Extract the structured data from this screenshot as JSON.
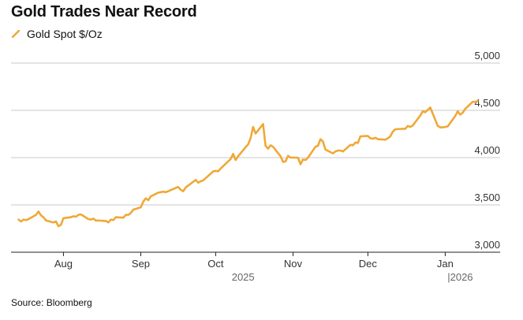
{
  "title": "Gold Trades Near Record",
  "source": "Source: Bloomberg",
  "colors": {
    "line": "#F0A836",
    "grid": "#C9C9C9",
    "text": "#111111",
    "axis_text": "#333333"
  },
  "chart_data": {
    "type": "line",
    "title": "Gold Trades Near Record",
    "xlabel": "",
    "ylabel": "",
    "ylim": [
      3000,
      5000
    ],
    "grid": true,
    "legend_position": "top-left",
    "y_tick_values": [
      3000,
      3500,
      4000,
      4500,
      5000
    ],
    "y_tick_labels": [
      "3,000",
      "3,500",
      "4,000",
      "4,500",
      "5,000"
    ],
    "x_ticks": [
      {
        "date": "2025-08-01",
        "label": "Aug"
      },
      {
        "date": "2025-09-01",
        "label": "Sep"
      },
      {
        "date": "2025-10-01",
        "label": "Oct"
      },
      {
        "date": "2025-11-01",
        "label": "Nov"
      },
      {
        "date": "2025-12-01",
        "label": "Dec"
      },
      {
        "date": "2026-01-01",
        "label": "Jan"
      }
    ],
    "year_labels": [
      {
        "label": "2025",
        "date": "2025-10-12"
      },
      {
        "label": "|2026",
        "date": "2026-01-07"
      }
    ],
    "series": [
      {
        "name": "Gold Spot $/Oz",
        "color": "#F0A836",
        "points": [
          [
            "2025-07-14",
            3345
          ],
          [
            "2025-07-15",
            3325
          ],
          [
            "2025-07-16",
            3345
          ],
          [
            "2025-07-17",
            3340
          ],
          [
            "2025-07-18",
            3350
          ],
          [
            "2025-07-21",
            3395
          ],
          [
            "2025-07-22",
            3430
          ],
          [
            "2025-07-23",
            3390
          ],
          [
            "2025-07-24",
            3370
          ],
          [
            "2025-07-25",
            3335
          ],
          [
            "2025-07-28",
            3315
          ],
          [
            "2025-07-29",
            3325
          ],
          [
            "2025-07-30",
            3275
          ],
          [
            "2025-07-31",
            3290
          ],
          [
            "2025-08-01",
            3360
          ],
          [
            "2025-08-04",
            3370
          ],
          [
            "2025-08-05",
            3380
          ],
          [
            "2025-08-06",
            3375
          ],
          [
            "2025-08-07",
            3395
          ],
          [
            "2025-08-08",
            3400
          ],
          [
            "2025-08-11",
            3350
          ],
          [
            "2025-08-12",
            3345
          ],
          [
            "2025-08-13",
            3355
          ],
          [
            "2025-08-14",
            3335
          ],
          [
            "2025-08-15",
            3335
          ],
          [
            "2025-08-18",
            3330
          ],
          [
            "2025-08-19",
            3315
          ],
          [
            "2025-08-20",
            3345
          ],
          [
            "2025-08-21",
            3340
          ],
          [
            "2025-08-22",
            3370
          ],
          [
            "2025-08-25",
            3365
          ],
          [
            "2025-08-26",
            3395
          ],
          [
            "2025-08-27",
            3395
          ],
          [
            "2025-08-28",
            3415
          ],
          [
            "2025-08-29",
            3450
          ],
          [
            "2025-09-01",
            3475
          ],
          [
            "2025-09-02",
            3535
          ],
          [
            "2025-09-03",
            3570
          ],
          [
            "2025-09-04",
            3550
          ],
          [
            "2025-09-05",
            3590
          ],
          [
            "2025-09-08",
            3630
          ],
          [
            "2025-09-09",
            3635
          ],
          [
            "2025-09-10",
            3640
          ],
          [
            "2025-09-11",
            3635
          ],
          [
            "2025-09-12",
            3645
          ],
          [
            "2025-09-15",
            3680
          ],
          [
            "2025-09-16",
            3690
          ],
          [
            "2025-09-17",
            3660
          ],
          [
            "2025-09-18",
            3645
          ],
          [
            "2025-09-19",
            3685
          ],
          [
            "2025-09-22",
            3745
          ],
          [
            "2025-09-23",
            3765
          ],
          [
            "2025-09-24",
            3735
          ],
          [
            "2025-09-25",
            3750
          ],
          [
            "2025-09-26",
            3760
          ],
          [
            "2025-09-29",
            3830
          ],
          [
            "2025-09-30",
            3855
          ],
          [
            "2025-10-01",
            3860
          ],
          [
            "2025-10-02",
            3855
          ],
          [
            "2025-10-03",
            3885
          ],
          [
            "2025-10-06",
            3960
          ],
          [
            "2025-10-07",
            3985
          ],
          [
            "2025-10-08",
            4040
          ],
          [
            "2025-10-09",
            3975
          ],
          [
            "2025-10-10",
            4015
          ],
          [
            "2025-10-13",
            4110
          ],
          [
            "2025-10-14",
            4140
          ],
          [
            "2025-10-15",
            4205
          ],
          [
            "2025-10-16",
            4325
          ],
          [
            "2025-10-17",
            4255
          ],
          [
            "2025-10-20",
            4355
          ],
          [
            "2025-10-21",
            4125
          ],
          [
            "2025-10-22",
            4095
          ],
          [
            "2025-10-23",
            4130
          ],
          [
            "2025-10-24",
            4115
          ],
          [
            "2025-10-27",
            4015
          ],
          [
            "2025-10-28",
            3955
          ],
          [
            "2025-10-29",
            3960
          ],
          [
            "2025-10-30",
            4020
          ],
          [
            "2025-10-31",
            4000
          ],
          [
            "2025-11-03",
            4000
          ],
          [
            "2025-11-04",
            3930
          ],
          [
            "2025-11-05",
            3980
          ],
          [
            "2025-11-06",
            3975
          ],
          [
            "2025-11-07",
            4000
          ],
          [
            "2025-11-10",
            4115
          ],
          [
            "2025-11-11",
            4125
          ],
          [
            "2025-11-12",
            4195
          ],
          [
            "2025-11-13",
            4170
          ],
          [
            "2025-11-14",
            4085
          ],
          [
            "2025-11-17",
            4045
          ],
          [
            "2025-11-18",
            4065
          ],
          [
            "2025-11-19",
            4075
          ],
          [
            "2025-11-20",
            4075
          ],
          [
            "2025-11-21",
            4065
          ],
          [
            "2025-11-24",
            4135
          ],
          [
            "2025-11-25",
            4130
          ],
          [
            "2025-11-26",
            4160
          ],
          [
            "2025-11-27",
            4155
          ],
          [
            "2025-11-28",
            4225
          ],
          [
            "2025-12-01",
            4230
          ],
          [
            "2025-12-02",
            4205
          ],
          [
            "2025-12-03",
            4200
          ],
          [
            "2025-12-04",
            4210
          ],
          [
            "2025-12-05",
            4195
          ],
          [
            "2025-12-08",
            4190
          ],
          [
            "2025-12-09",
            4205
          ],
          [
            "2025-12-10",
            4225
          ],
          [
            "2025-12-11",
            4275
          ],
          [
            "2025-12-12",
            4300
          ],
          [
            "2025-12-15",
            4305
          ],
          [
            "2025-12-16",
            4305
          ],
          [
            "2025-12-17",
            4335
          ],
          [
            "2025-12-18",
            4325
          ],
          [
            "2025-12-19",
            4340
          ],
          [
            "2025-12-22",
            4445
          ],
          [
            "2025-12-23",
            4490
          ],
          [
            "2025-12-24",
            4480
          ],
          [
            "2025-12-26",
            4530
          ],
          [
            "2025-12-29",
            4335
          ],
          [
            "2025-12-30",
            4320
          ],
          [
            "2025-12-31",
            4320
          ],
          [
            "2026-01-02",
            4330
          ],
          [
            "2026-01-05",
            4440
          ],
          [
            "2026-01-06",
            4490
          ],
          [
            "2026-01-07",
            4455
          ],
          [
            "2026-01-08",
            4475
          ],
          [
            "2026-01-09",
            4515
          ],
          [
            "2026-01-12",
            4590
          ],
          [
            "2026-01-13",
            4590
          ],
          [
            "2026-01-14",
            4600
          ]
        ]
      }
    ]
  }
}
